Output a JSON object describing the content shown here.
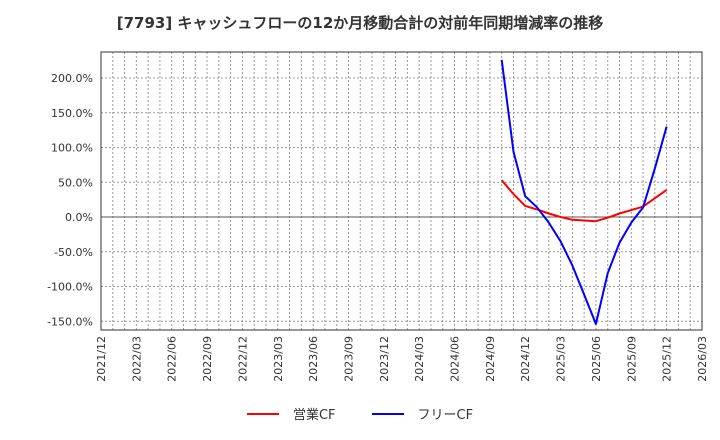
{
  "title": "[7793]  キャッシュフローの12か月移動合計の対前年同期増減率の推移",
  "legend": {
    "items": [
      {
        "label": "営業CF",
        "color": "#ff0000"
      },
      {
        "label": "フリーCF",
        "color": "#0000ff"
      }
    ]
  },
  "chart_data": {
    "type": "line",
    "title": "[7793]  キャッシュフローの12か月移動合計の対前年同期増減率の推移",
    "xlabel": "",
    "ylabel": "",
    "ylim": [
      -165,
      235
    ],
    "grid": true,
    "legend_position": "bottom",
    "y_ticks": [
      "200.0%",
      "150.0%",
      "100.0%",
      "50.0%",
      "0.0%",
      "-50.0%",
      "-100.0%",
      "-150.0%"
    ],
    "y_tick_values": [
      200,
      150,
      100,
      50,
      0,
      -50,
      -100,
      -150
    ],
    "x_ticks": [
      "2021/12",
      "2022/03",
      "2022/06",
      "2022/09",
      "2022/12",
      "2023/03",
      "2023/06",
      "2023/09",
      "2023/12",
      "2024/03",
      "2024/06",
      "2024/09",
      "2024/12",
      "2025/03",
      "2025/06",
      "2025/09",
      "2025/12",
      "2026/03"
    ],
    "x": [
      "2024/10",
      "2024/11",
      "2024/12",
      "2025/01",
      "2025/02",
      "2025/03",
      "2025/04",
      "2025/05",
      "2025/06",
      "2025/07",
      "2025/08",
      "2025/09",
      "2025/10",
      "2025/11",
      "2025/12"
    ],
    "series": [
      {
        "name": "営業CF",
        "color": "#ff0000",
        "values": [
          53,
          33,
          16,
          11,
          5,
          0,
          -4,
          -5,
          -6,
          -1,
          5,
          10,
          15,
          27,
          39
        ]
      },
      {
        "name": "フリーCF",
        "color": "#0000ff",
        "values": [
          226,
          94,
          30,
          14,
          -8,
          -35,
          -70,
          -112,
          -154,
          -81,
          -37,
          -8,
          14,
          70,
          130
        ]
      }
    ]
  }
}
